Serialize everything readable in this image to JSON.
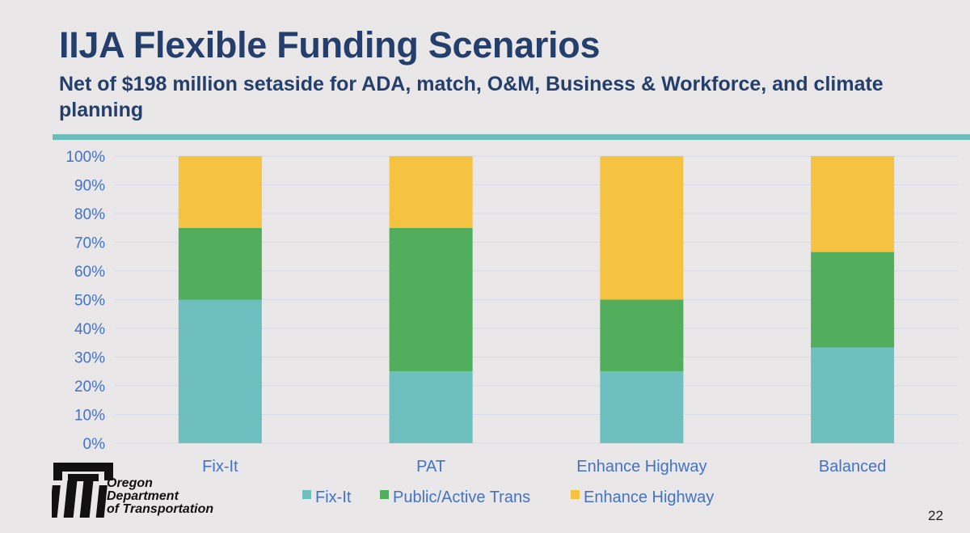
{
  "slide": {
    "title": "IIJA Flexible Funding Scenarios",
    "subtitle": "Net of $198 million setaside for ADA, match, O&M, Business & Workforce, and climate planning",
    "page_number": "22",
    "accent_color": "#6bbcbb",
    "title_color": "#243f6b"
  },
  "logo": {
    "icon": "odot-logo-icon",
    "line1": "Oregon",
    "line2": "Department",
    "line3": "of Transportation"
  },
  "chart_data": {
    "type": "bar",
    "stacked": true,
    "percent": true,
    "categories": [
      "Fix-It",
      "PAT",
      "Enhance Highway",
      "Balanced"
    ],
    "series": [
      {
        "name": "Fix-It",
        "color": "#6fbfbf",
        "values": [
          50,
          25,
          25,
          33.3
        ]
      },
      {
        "name": "Public/Active Trans",
        "color": "#52ae5c",
        "values": [
          25,
          50,
          25,
          33.3
        ]
      },
      {
        "name": "Enhance Highway",
        "color": "#f5c242",
        "values": [
          25,
          25,
          50,
          33.4
        ]
      }
    ],
    "yticks": [
      "0%",
      "10%",
      "20%",
      "30%",
      "40%",
      "50%",
      "60%",
      "70%",
      "80%",
      "90%",
      "100%"
    ],
    "ylim": [
      0,
      100
    ],
    "grid": true,
    "legend_position": "bottom"
  }
}
